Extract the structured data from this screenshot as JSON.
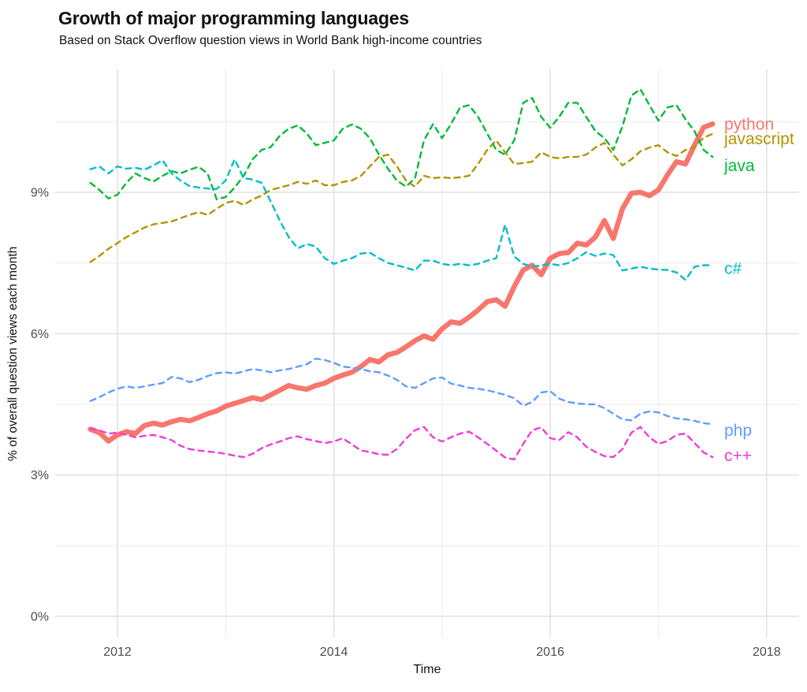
{
  "title": "Growth of major programming languages",
  "subtitle": "Based on Stack Overflow question views in World Bank high-income countries",
  "chart_data": {
    "type": "line",
    "title": "Growth of major programming languages",
    "subtitle": "Based on Stack Overflow question views in World Bank high-income countries",
    "xlabel": "Time",
    "ylabel": "% of overall question views each month",
    "grid": true,
    "legend_position": "direct-labels-right",
    "xlim": [
      2011.6,
      2018.35
    ],
    "ylim": [
      0,
      11.6
    ],
    "x_ticks": [
      2012,
      2014,
      2016,
      2018
    ],
    "x_minor_ticks": [
      2013,
      2015,
      2017
    ],
    "y_ticks": [
      [
        0,
        "0%"
      ],
      [
        3,
        "3%"
      ],
      [
        6,
        "6%"
      ],
      [
        9,
        "9%"
      ]
    ],
    "y_minor_ticks": [
      1.5,
      4.5,
      7.5,
      10.5
    ],
    "x": [
      2011.75,
      2011.833,
      2011.917,
      2012.0,
      2012.083,
      2012.167,
      2012.25,
      2012.333,
      2012.417,
      2012.5,
      2012.583,
      2012.667,
      2012.75,
      2012.833,
      2012.917,
      2013.0,
      2013.083,
      2013.167,
      2013.25,
      2013.333,
      2013.417,
      2013.5,
      2013.583,
      2013.667,
      2013.75,
      2013.833,
      2013.917,
      2014.0,
      2014.083,
      2014.167,
      2014.25,
      2014.333,
      2014.417,
      2014.5,
      2014.583,
      2014.667,
      2014.75,
      2014.833,
      2014.917,
      2015.0,
      2015.083,
      2015.167,
      2015.25,
      2015.333,
      2015.417,
      2015.5,
      2015.583,
      2015.667,
      2015.75,
      2015.833,
      2015.917,
      2016.0,
      2016.083,
      2016.167,
      2016.25,
      2016.333,
      2016.417,
      2016.5,
      2016.583,
      2016.667,
      2016.75,
      2016.833,
      2016.917,
      2017.0,
      2017.083,
      2017.167,
      2017.25,
      2017.333,
      2017.417,
      2017.5
    ],
    "series": [
      {
        "name": "python",
        "color": "#f8766d",
        "style": "solid",
        "values": [
          3.97,
          3.9,
          3.72,
          3.85,
          3.92,
          3.88,
          4.05,
          4.1,
          4.06,
          4.13,
          4.18,
          4.15,
          4.22,
          4.3,
          4.36,
          4.46,
          4.52,
          4.58,
          4.64,
          4.6,
          4.7,
          4.8,
          4.9,
          4.85,
          4.82,
          4.9,
          4.95,
          5.05,
          5.12,
          5.18,
          5.3,
          5.45,
          5.4,
          5.55,
          5.6,
          5.72,
          5.85,
          5.95,
          5.88,
          6.1,
          6.25,
          6.22,
          6.35,
          6.5,
          6.68,
          6.72,
          6.58,
          7.0,
          7.35,
          7.45,
          7.25,
          7.6,
          7.7,
          7.72,
          7.92,
          7.88,
          8.05,
          8.4,
          8.02,
          8.65,
          8.98,
          9.0,
          8.93,
          9.05,
          9.37,
          9.65,
          9.6,
          10.0,
          10.38,
          10.45
        ]
      },
      {
        "name": "javascript",
        "color": "#b29400",
        "style": "dashed",
        "values": [
          7.52,
          7.65,
          7.8,
          7.92,
          8.05,
          8.15,
          8.25,
          8.32,
          8.35,
          8.38,
          8.45,
          8.52,
          8.58,
          8.52,
          8.65,
          8.77,
          8.82,
          8.73,
          8.85,
          8.93,
          9.05,
          9.1,
          9.15,
          9.22,
          9.18,
          9.25,
          9.15,
          9.15,
          9.22,
          9.25,
          9.35,
          9.55,
          9.75,
          9.8,
          9.55,
          9.25,
          9.12,
          9.35,
          9.3,
          9.32,
          9.3,
          9.32,
          9.35,
          9.6,
          9.9,
          10.1,
          9.85,
          9.6,
          9.62,
          9.65,
          9.85,
          9.75,
          9.72,
          9.75,
          9.75,
          9.8,
          9.95,
          10.05,
          9.8,
          9.57,
          9.7,
          9.87,
          9.95,
          10.0,
          9.85,
          9.77,
          9.9,
          9.96,
          10.16,
          10.24
        ]
      },
      {
        "name": "java",
        "color": "#00ba38",
        "style": "dashed",
        "values": [
          9.2,
          9.05,
          8.87,
          8.95,
          9.2,
          9.4,
          9.3,
          9.23,
          9.35,
          9.45,
          9.4,
          9.48,
          9.54,
          9.4,
          8.85,
          8.9,
          9.1,
          9.35,
          9.7,
          9.9,
          9.96,
          10.2,
          10.35,
          10.42,
          10.25,
          10.0,
          10.05,
          10.1,
          10.35,
          10.44,
          10.35,
          10.15,
          9.8,
          9.5,
          9.25,
          9.12,
          9.3,
          10.1,
          10.45,
          10.15,
          10.45,
          10.8,
          10.85,
          10.6,
          10.25,
          9.9,
          9.8,
          10.1,
          10.9,
          11.0,
          10.6,
          10.37,
          10.6,
          10.9,
          10.9,
          10.6,
          10.3,
          10.15,
          9.9,
          10.4,
          11.05,
          11.19,
          10.85,
          10.52,
          10.8,
          10.85,
          10.55,
          10.3,
          9.9,
          9.75
        ]
      },
      {
        "name": "c#",
        "color": "#00bec8",
        "style": "dashed",
        "values": [
          9.49,
          9.55,
          9.4,
          9.55,
          9.5,
          9.52,
          9.48,
          9.57,
          9.68,
          9.4,
          9.25,
          9.13,
          9.1,
          9.08,
          9.07,
          9.25,
          9.7,
          9.3,
          9.27,
          9.2,
          8.8,
          8.4,
          8.05,
          7.81,
          7.9,
          7.85,
          7.6,
          7.48,
          7.55,
          7.6,
          7.7,
          7.72,
          7.6,
          7.5,
          7.45,
          7.4,
          7.34,
          7.55,
          7.55,
          7.48,
          7.45,
          7.48,
          7.45,
          7.48,
          7.55,
          7.6,
          8.31,
          7.64,
          7.48,
          7.42,
          7.45,
          7.48,
          7.45,
          7.5,
          7.6,
          7.73,
          7.65,
          7.7,
          7.67,
          7.34,
          7.38,
          7.42,
          7.38,
          7.36,
          7.35,
          7.3,
          7.14,
          7.42,
          7.45,
          7.45
        ]
      },
      {
        "name": "php",
        "color": "#619cff",
        "style": "dashed",
        "values": [
          4.57,
          4.65,
          4.75,
          4.83,
          4.88,
          4.85,
          4.88,
          4.92,
          4.95,
          5.08,
          5.05,
          4.97,
          5.02,
          5.1,
          5.16,
          5.18,
          5.15,
          5.2,
          5.25,
          5.22,
          5.18,
          5.22,
          5.25,
          5.3,
          5.35,
          5.47,
          5.44,
          5.38,
          5.3,
          5.28,
          5.25,
          5.2,
          5.18,
          5.11,
          5.02,
          4.88,
          4.85,
          4.95,
          5.05,
          5.07,
          4.94,
          4.9,
          4.85,
          4.83,
          4.8,
          4.75,
          4.7,
          4.63,
          4.47,
          4.55,
          4.75,
          4.78,
          4.62,
          4.55,
          4.52,
          4.5,
          4.5,
          4.42,
          4.3,
          4.18,
          4.16,
          4.3,
          4.35,
          4.33,
          4.25,
          4.2,
          4.18,
          4.15,
          4.1,
          4.08
        ]
      },
      {
        "name": "c++",
        "color": "#f23bd3",
        "style": "dashed",
        "values": [
          4.0,
          3.95,
          3.88,
          3.9,
          3.85,
          3.8,
          3.83,
          3.85,
          3.8,
          3.74,
          3.62,
          3.55,
          3.52,
          3.5,
          3.48,
          3.45,
          3.41,
          3.38,
          3.45,
          3.57,
          3.65,
          3.71,
          3.78,
          3.82,
          3.76,
          3.72,
          3.68,
          3.71,
          3.78,
          3.65,
          3.52,
          3.49,
          3.44,
          3.43,
          3.55,
          3.77,
          3.95,
          4.02,
          3.8,
          3.71,
          3.8,
          3.88,
          3.92,
          3.8,
          3.66,
          3.52,
          3.37,
          3.33,
          3.66,
          3.95,
          4.01,
          3.78,
          3.74,
          3.91,
          3.8,
          3.6,
          3.49,
          3.4,
          3.38,
          3.55,
          3.9,
          4.02,
          3.8,
          3.66,
          3.72,
          3.85,
          3.88,
          3.68,
          3.48,
          3.38
        ]
      }
    ]
  }
}
